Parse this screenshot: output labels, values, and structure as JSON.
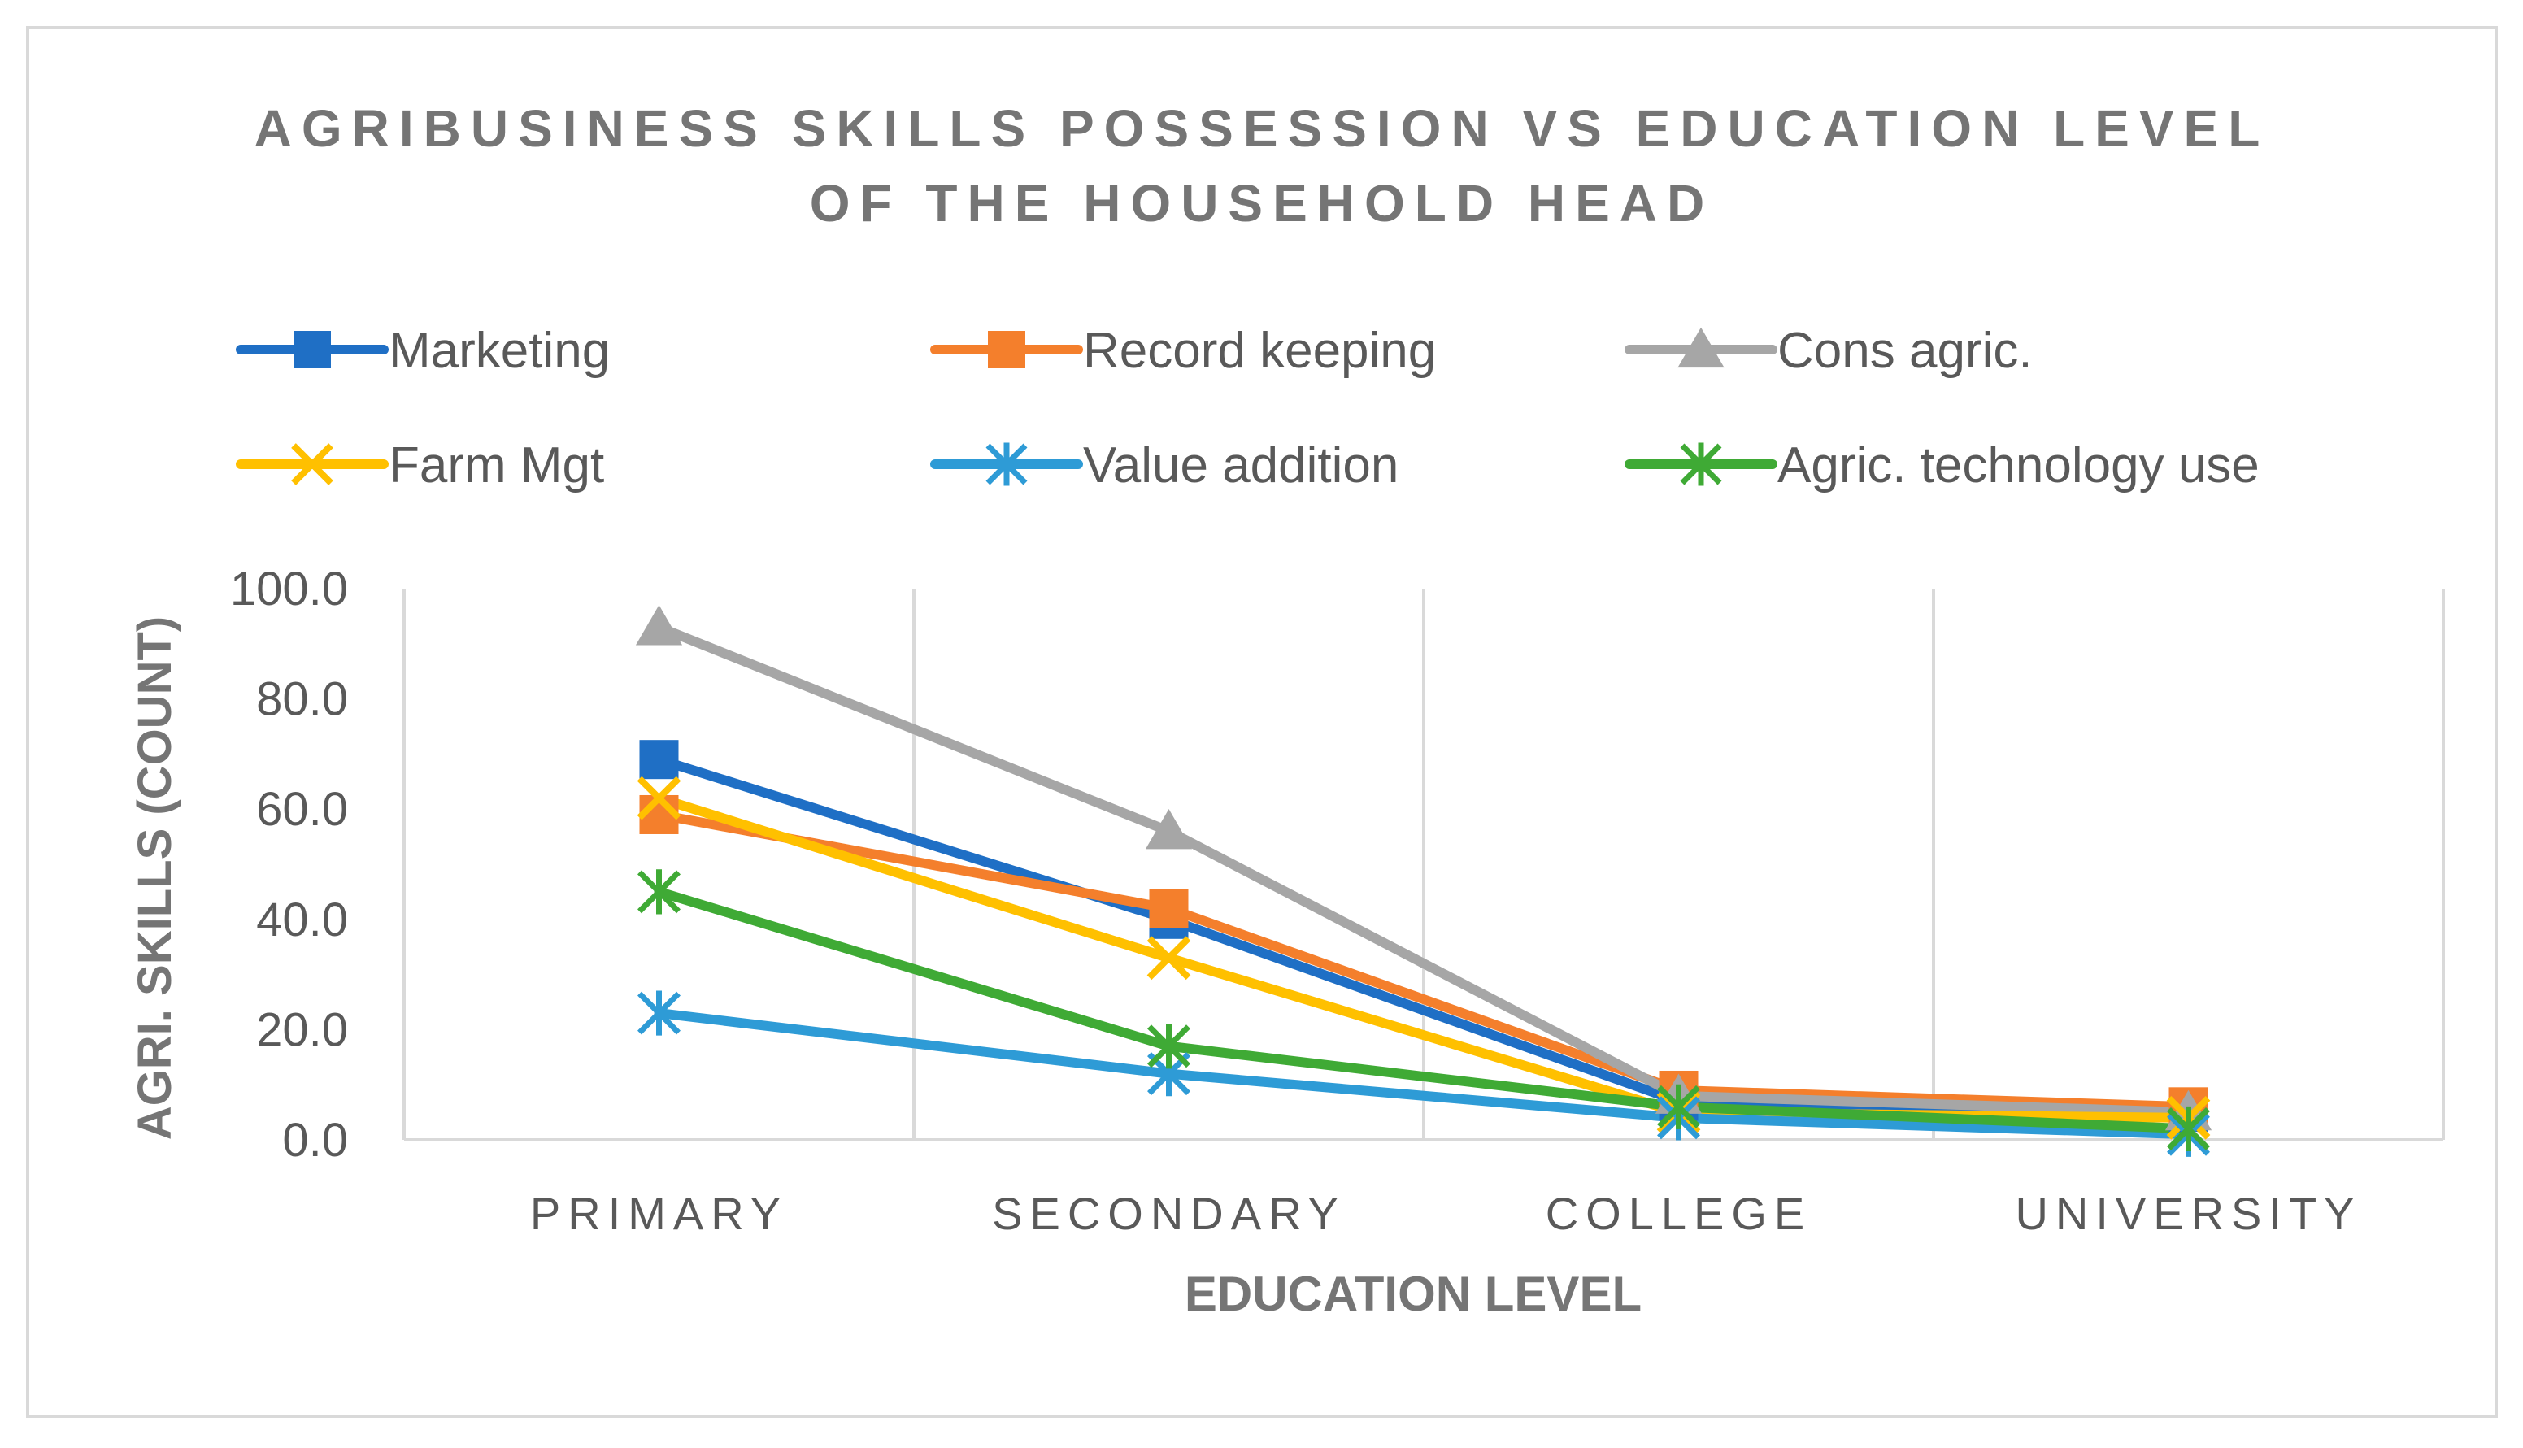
{
  "chart_data": {
    "type": "line",
    "title_lines": [
      "AGRIBUSINESS SKILLS POSSESSION VS EDUCATION LEVEL",
      "OF THE HOUSEHOLD HEAD"
    ],
    "xlabel": "EDUCATION LEVEL",
    "ylabel": "AGRI. SKILLS (COUNT)",
    "categories": [
      "PRIMARY",
      "SECONDARY",
      "COLLEGE",
      "UNIVERSITY"
    ],
    "ylim": [
      0,
      100
    ],
    "yticks": [
      "0.0",
      "20.0",
      "40.0",
      "60.0",
      "80.0",
      "100.0"
    ],
    "grid": "vertical",
    "legend_position": "top",
    "series": [
      {
        "name": "Marketing",
        "values": [
          69,
          40,
          7,
          5
        ],
        "color": "#1F6FC5",
        "marker": "square"
      },
      {
        "name": "Record keeping",
        "values": [
          59,
          42,
          9,
          6
        ],
        "color": "#F47F2C",
        "marker": "square"
      },
      {
        "name": "Cons agric.",
        "values": [
          93,
          56,
          8,
          5
        ],
        "color": "#A6A6A6",
        "marker": "triangle"
      },
      {
        "name": "Farm Mgt",
        "values": [
          62,
          33,
          5,
          4
        ],
        "color": "#FFC000",
        "marker": "x"
      },
      {
        "name": "Value addition",
        "values": [
          23,
          12,
          4,
          1
        ],
        "color": "#2E9BD6",
        "marker": "asterisk"
      },
      {
        "name": "Agric. technology use",
        "values": [
          45,
          17,
          6,
          2
        ],
        "color": "#3FAA35",
        "marker": "asterisk"
      }
    ]
  }
}
